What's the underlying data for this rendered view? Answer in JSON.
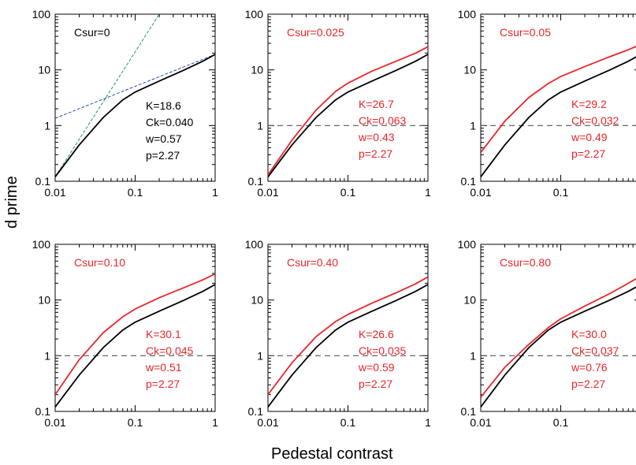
{
  "figure": {
    "ylabel": "d prime",
    "xlabel": "Pedestal contrast",
    "x_ticks": [
      "0.01",
      "0.1",
      "1"
    ],
    "y_ticks": [
      "0.1",
      "1",
      "10",
      "100"
    ]
  },
  "colors": {
    "model": "#000000",
    "data": "#e8262a",
    "reference": "#555555",
    "fit_low": "#1a9a6a",
    "fit_high": "#2b4fb0"
  },
  "chart_data": [
    {
      "type": "line",
      "xscale": "log",
      "yscale": "log",
      "xlim": [
        0.01,
        1
      ],
      "ylim": [
        0.1,
        100
      ],
      "csur_label": "Csur=0",
      "params": [
        "K=18.6",
        "Ck=0.040",
        "w=0.57",
        "p=2.27"
      ],
      "text_color": "black",
      "reference_line": null,
      "series": [
        {
          "color": "black",
          "points": [
            [
              0.01,
              0.12
            ],
            [
              0.02,
              0.45
            ],
            [
              0.04,
              1.4
            ],
            [
              0.07,
              2.9
            ],
            [
              0.1,
              4.0
            ],
            [
              0.2,
              6.3
            ],
            [
              0.4,
              9.8
            ],
            [
              0.7,
              14.3
            ],
            [
              1,
              19.0
            ]
          ]
        }
      ],
      "asymptotes": [
        {
          "color": "green",
          "points": [
            [
              0.01,
              0.12
            ],
            [
              0.2,
              100
            ]
          ]
        },
        {
          "color": "blue",
          "points": [
            [
              0.01,
              1.35
            ],
            [
              1,
              19.0
            ]
          ]
        }
      ]
    },
    {
      "type": "line",
      "xscale": "log",
      "yscale": "log",
      "xlim": [
        0.01,
        1
      ],
      "ylim": [
        0.1,
        100
      ],
      "csur_label": "Csur=0.025",
      "params": [
        "K=26.7",
        "Ck=0.063",
        "w=0.43",
        "p=2.27"
      ],
      "text_color": "red",
      "reference_line": 1,
      "series": [
        {
          "color": "black",
          "points": [
            [
              0.009,
              0.1
            ],
            [
              0.01,
              0.12
            ],
            [
              0.02,
              0.45
            ],
            [
              0.04,
              1.4
            ],
            [
              0.07,
              2.9
            ],
            [
              0.1,
              4.0
            ],
            [
              0.2,
              6.3
            ],
            [
              0.4,
              9.8
            ],
            [
              0.7,
              14.3
            ],
            [
              1,
              19.0
            ]
          ]
        },
        {
          "color": "red",
          "points": [
            [
              0.009,
              0.1
            ],
            [
              0.01,
              0.13
            ],
            [
              0.02,
              0.55
            ],
            [
              0.04,
              1.9
            ],
            [
              0.07,
              4.1
            ],
            [
              0.1,
              5.8
            ],
            [
              0.2,
              9.5
            ],
            [
              0.4,
              14.3
            ],
            [
              0.7,
              20.0
            ],
            [
              1,
              26.0
            ]
          ]
        }
      ]
    },
    {
      "type": "line",
      "xscale": "log",
      "yscale": "log",
      "xlim": [
        0.01,
        1
      ],
      "ylim": [
        0.1,
        100
      ],
      "csur_label": "Csur=0.05",
      "params": [
        "K=29.2",
        "Ck=0.032",
        "w=0.49",
        "p=2.27"
      ],
      "text_color": "red",
      "reference_line": 1,
      "series": [
        {
          "color": "black",
          "points": [
            [
              0.01,
              0.12
            ],
            [
              0.02,
              0.45
            ],
            [
              0.04,
              1.4
            ],
            [
              0.07,
              2.9
            ],
            [
              0.1,
              4.0
            ],
            [
              0.2,
              6.3
            ],
            [
              0.4,
              9.8
            ],
            [
              0.7,
              14.3
            ],
            [
              1,
              19.0
            ]
          ]
        },
        {
          "color": "red",
          "points": [
            [
              0.01,
              0.33
            ],
            [
              0.02,
              1.2
            ],
            [
              0.04,
              3.2
            ],
            [
              0.07,
              5.7
            ],
            [
              0.1,
              7.6
            ],
            [
              0.2,
              11.5
            ],
            [
              0.4,
              17.0
            ],
            [
              0.7,
              23.0
            ],
            [
              1,
              28.5
            ]
          ]
        }
      ]
    },
    {
      "type": "line",
      "xscale": "log",
      "yscale": "log",
      "xlim": [
        0.01,
        1
      ],
      "ylim": [
        0.1,
        100
      ],
      "csur_label": "Csur=0.10",
      "params": [
        "K=30.1",
        "Ck=0.045",
        "w=0.51",
        "p=2.27"
      ],
      "text_color": "red",
      "reference_line": 1,
      "series": [
        {
          "color": "black",
          "points": [
            [
              0.01,
              0.12
            ],
            [
              0.02,
              0.45
            ],
            [
              0.04,
              1.4
            ],
            [
              0.07,
              2.9
            ],
            [
              0.1,
              4.0
            ],
            [
              0.2,
              6.3
            ],
            [
              0.4,
              9.8
            ],
            [
              0.7,
              14.3
            ],
            [
              1,
              19.0
            ]
          ]
        },
        {
          "color": "red",
          "points": [
            [
              0.01,
              0.2
            ],
            [
              0.02,
              0.85
            ],
            [
              0.04,
              2.6
            ],
            [
              0.07,
              5.0
            ],
            [
              0.1,
              6.9
            ],
            [
              0.2,
              11.0
            ],
            [
              0.4,
              16.5
            ],
            [
              0.7,
              23.0
            ],
            [
              1,
              29.5
            ]
          ]
        }
      ]
    },
    {
      "type": "line",
      "xscale": "log",
      "yscale": "log",
      "xlim": [
        0.01,
        1
      ],
      "ylim": [
        0.1,
        100
      ],
      "csur_label": "Csur=0.40",
      "params": [
        "K=26.6",
        "Ck=0.035",
        "w=0.59",
        "p=2.27"
      ],
      "text_color": "red",
      "reference_line": 1,
      "series": [
        {
          "color": "black",
          "points": [
            [
              0.01,
              0.12
            ],
            [
              0.02,
              0.45
            ],
            [
              0.04,
              1.4
            ],
            [
              0.07,
              2.9
            ],
            [
              0.1,
              4.0
            ],
            [
              0.2,
              6.3
            ],
            [
              0.4,
              9.8
            ],
            [
              0.7,
              14.3
            ],
            [
              1,
              19.0
            ]
          ]
        },
        {
          "color": "red",
          "points": [
            [
              0.01,
              0.2
            ],
            [
              0.02,
              0.75
            ],
            [
              0.04,
              2.2
            ],
            [
              0.07,
              4.1
            ],
            [
              0.1,
              5.5
            ],
            [
              0.2,
              8.8
            ],
            [
              0.4,
              13.5
            ],
            [
              0.7,
              19.5
            ],
            [
              1,
              26.0
            ]
          ]
        }
      ]
    },
    {
      "type": "line",
      "xscale": "log",
      "yscale": "log",
      "xlim": [
        0.01,
        1
      ],
      "ylim": [
        0.1,
        100
      ],
      "csur_label": "Csur=0.80",
      "params": [
        "K=30.0",
        "Ck=0.037",
        "w=0.76",
        "p=2.27"
      ],
      "text_color": "red",
      "reference_line": 1,
      "series": [
        {
          "color": "black",
          "points": [
            [
              0.01,
              0.12
            ],
            [
              0.02,
              0.45
            ],
            [
              0.04,
              1.4
            ],
            [
              0.07,
              2.9
            ],
            [
              0.1,
              4.0
            ],
            [
              0.2,
              6.3
            ],
            [
              0.4,
              9.8
            ],
            [
              0.7,
              14.3
            ],
            [
              1,
              19.0
            ]
          ]
        },
        {
          "color": "red",
          "points": [
            [
              0.01,
              0.18
            ],
            [
              0.02,
              0.62
            ],
            [
              0.04,
              1.6
            ],
            [
              0.07,
              3.2
            ],
            [
              0.1,
              4.6
            ],
            [
              0.2,
              7.8
            ],
            [
              0.4,
              12.8
            ],
            [
              0.7,
              20.0
            ],
            [
              1,
              27.0
            ]
          ]
        }
      ]
    }
  ]
}
